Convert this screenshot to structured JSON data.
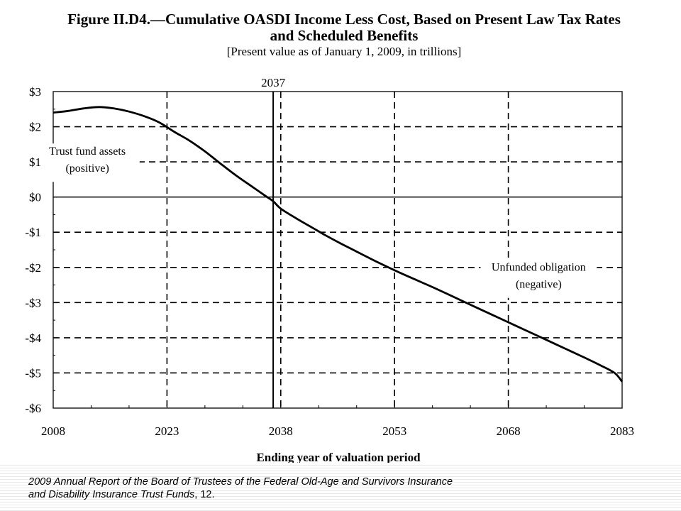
{
  "chart_data": {
    "type": "line",
    "title_line1": "Figure II.D4.—Cumulative OASDI Income Less Cost, Based on Present Law Tax Rates",
    "title_line2": "and Scheduled Benefits",
    "subtitle": "[Present value as of January 1, 2009, in trillions]",
    "xlabel": "Ending year of valuation period",
    "ylabel": "",
    "xlim": [
      2008,
      2083
    ],
    "ylim": [
      -6,
      3
    ],
    "x_ticks": [
      2008,
      2023,
      2038,
      2053,
      2068,
      2083
    ],
    "x_tick_labels": [
      "2008",
      "2023",
      "2038",
      "2053",
      "2068",
      "2083"
    ],
    "y_ticks": [
      3,
      2,
      1,
      0,
      -1,
      -2,
      -3,
      -4,
      -5,
      -6
    ],
    "y_tick_labels": [
      "$3",
      "$2",
      "$1",
      "$0",
      "-$1",
      "-$2",
      "-$3",
      "-$4",
      "-$5",
      "-$6"
    ],
    "grid": true,
    "grid_style": "dashed",
    "reference_line": {
      "x": 2037,
      "label": "2037"
    },
    "series": [
      {
        "x": [
          2008,
          2010,
          2012,
          2014,
          2016,
          2018,
          2020,
          2022,
          2024,
          2026,
          2028,
          2030,
          2032,
          2034,
          2036,
          2037,
          2038,
          2040,
          2042,
          2044,
          2046,
          2048,
          2050,
          2052,
          2054,
          2056,
          2058,
          2060,
          2062,
          2064,
          2066,
          2068,
          2070,
          2072,
          2074,
          2076,
          2078,
          2080,
          2082,
          2083
        ],
        "values": [
          2.4,
          2.45,
          2.52,
          2.56,
          2.52,
          2.43,
          2.3,
          2.12,
          1.85,
          1.6,
          1.3,
          0.96,
          0.63,
          0.33,
          0.03,
          -0.12,
          -0.33,
          -0.6,
          -0.85,
          -1.1,
          -1.33,
          -1.55,
          -1.77,
          -1.98,
          -2.18,
          -2.37,
          -2.56,
          -2.76,
          -2.96,
          -3.16,
          -3.36,
          -3.56,
          -3.76,
          -3.96,
          -4.16,
          -4.36,
          -4.56,
          -4.77,
          -5.0,
          -5.25
        ]
      }
    ],
    "annotations": [
      {
        "lines": [
          "Trust fund assets",
          "(positive)"
        ],
        "x": 2012.5,
        "y": 1.2
      },
      {
        "lines": [
          "Unfunded obligation",
          "(negative)"
        ],
        "x": 2072,
        "y": -2.1
      }
    ]
  },
  "caption": {
    "line1": "2009 Annual Report of the Board of Trustees of the Federal Old-Age and Survivors Insurance",
    "line2_italic": "and Disability  Insurance Trust Funds",
    "line2_plain": ", 12."
  }
}
